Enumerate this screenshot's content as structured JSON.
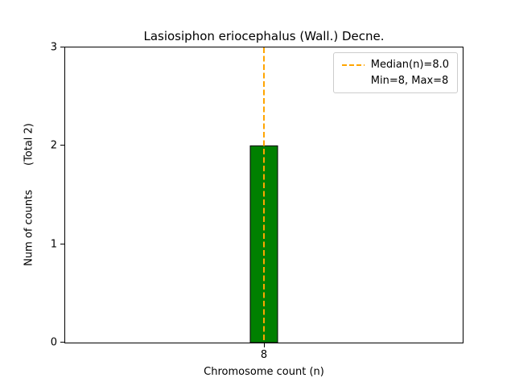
{
  "title": "Lasiosiphon eriocephalus (Wall.) Decne.",
  "axes": {
    "xlabel": "Chromosome count (n)",
    "ylabel_main": "Num of counts",
    "ylabel_total": "(Total 2)",
    "yticks": [
      "0",
      "1",
      "2",
      "3"
    ],
    "xticks": [
      "8"
    ]
  },
  "legend": {
    "median_label": "Median(n)=8.0",
    "minmax_label": "Min=8, Max=8"
  },
  "colors": {
    "bar_fill": "#008000",
    "bar_edge": "#000000",
    "median_line": "#FFA500",
    "axis": "#000000",
    "legend_border": "#cccccc"
  },
  "chart_data": {
    "type": "bar",
    "title": "Lasiosiphon eriocephalus (Wall.) Decne.",
    "xlabel": "Chromosome count (n)",
    "ylabel": "Num of counts      (Total 2)",
    "categories": [
      "8"
    ],
    "values": [
      2
    ],
    "ylim": [
      0,
      3
    ],
    "yticks": [
      0,
      1,
      2,
      3
    ],
    "series": [
      {
        "name": "counts",
        "values": [
          2
        ]
      }
    ],
    "annotations": {
      "median_n": 8.0,
      "min_n": 8,
      "max_n": 8,
      "total_counts": 2,
      "median_line_x": "8"
    },
    "legend_entries": [
      "Median(n)=8.0",
      "Min=8, Max=8"
    ],
    "legend_position": "upper right",
    "grid": false
  }
}
